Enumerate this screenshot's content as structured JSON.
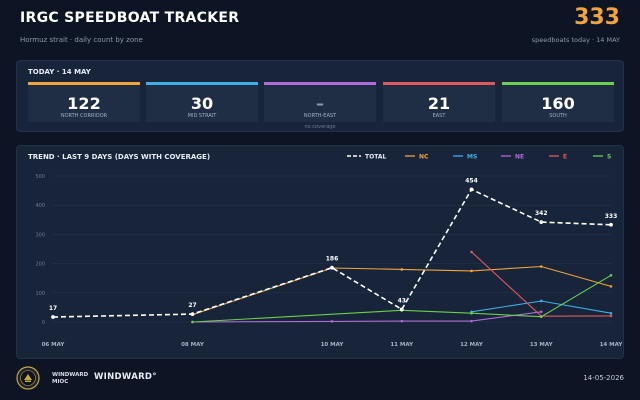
{
  "header": {
    "title": "IRGC SPEEDBOAT TRACKER",
    "subtitle": "Hormuz strait  ·  daily count by zone",
    "count": "333",
    "count_caption": "speedboats today  ·  14 MAY"
  },
  "today": {
    "heading": "TODAY  ·  14 MAY",
    "cards": [
      {
        "value": "122",
        "label": "NORTH CORRIDOR",
        "color": "#f0a43a",
        "note": ""
      },
      {
        "value": "30",
        "label": "MID STRAIT",
        "color": "#3fb0e6",
        "note": ""
      },
      {
        "value": "–",
        "label": "NORTH-EAST",
        "color": "#b06ad8",
        "note": "no coverage"
      },
      {
        "value": "21",
        "label": "EAST",
        "color": "#e0585c",
        "note": ""
      },
      {
        "value": "160",
        "label": "SOUTH",
        "color": "#6ccf4f",
        "note": ""
      }
    ]
  },
  "trend": {
    "heading": "TREND  ·  LAST 9 DAYS  (DAYS WITH COVERAGE)"
  },
  "chart_data": {
    "type": "line",
    "title": "TREND  ·  LAST 9 DAYS  (DAYS WITH COVERAGE)",
    "x": [
      "2026-05-06",
      "2026-05-08",
      "2026-05-10",
      "2026-05-11",
      "2026-05-12",
      "2026-05-13",
      "2026-05-14"
    ],
    "x_tick_labels": [
      "06 MAY",
      "08 MAY",
      "10 MAY",
      "11 MAY",
      "12 MAY",
      "13 MAY",
      "14 MAY"
    ],
    "ylim": [
      0,
      500
    ],
    "y_ticks": [
      0,
      100,
      200,
      300,
      400,
      500
    ],
    "grid": true,
    "legend_position": "top-right",
    "series": [
      {
        "name": "TOTAL",
        "color": "#ffffff",
        "dashed": true,
        "values": [
          17,
          27,
          186,
          43,
          454,
          342,
          333
        ],
        "labels": [
          "17",
          "27",
          "186",
          "43",
          "454",
          "342",
          "333"
        ]
      },
      {
        "name": "NC",
        "color": "#f0a43a",
        "values": [
          null,
          25,
          185,
          180,
          175,
          190,
          122
        ]
      },
      {
        "name": "MS",
        "color": "#3fb0e6",
        "values": [
          null,
          null,
          null,
          null,
          35,
          72,
          30
        ]
      },
      {
        "name": "NE",
        "color": "#b06ad8",
        "values": [
          null,
          0,
          2,
          3,
          3,
          35,
          null
        ]
      },
      {
        "name": "E",
        "color": "#e0585c",
        "values": [
          null,
          null,
          null,
          null,
          240,
          20,
          21
        ]
      },
      {
        "name": "S",
        "color": "#6ccf4f",
        "values": [
          null,
          0,
          null,
          40,
          30,
          18,
          160
        ]
      }
    ]
  },
  "footer": {
    "org_name": "WINDWARD MIOC",
    "brand": "WINDWARD°",
    "date": "14-05-2026"
  }
}
